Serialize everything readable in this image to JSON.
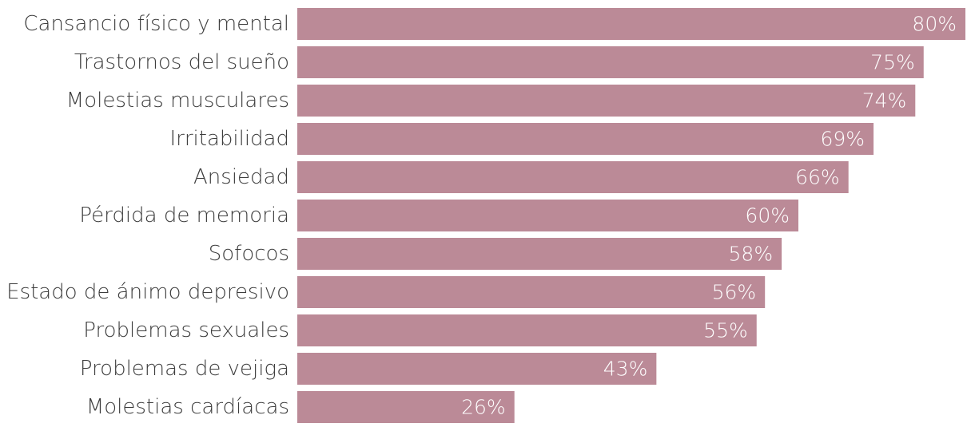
{
  "chart_data": {
    "type": "bar",
    "orientation": "horizontal",
    "categories": [
      "Cansancio físico y mental",
      "Trastornos del sueño",
      "Molestias musculares",
      "Irritabilidad",
      "Ansiedad",
      "Pérdida de memoria",
      "Sofocos",
      "Estado de ánimo depresivo",
      "Problemas sexuales",
      "Problemas de vejiga",
      "Molestias cardíacas"
    ],
    "values": [
      80,
      75,
      74,
      69,
      66,
      60,
      58,
      56,
      55,
      43,
      26
    ],
    "value_labels": [
      "80%",
      "75%",
      "74%",
      "69%",
      "66%",
      "60%",
      "58%",
      "56%",
      "55%",
      "43%",
      "26%"
    ],
    "unit": "%",
    "xlim": [
      0,
      80
    ],
    "grid": false,
    "legend": "none",
    "bar_color": "#bb8a97",
    "title": "",
    "xlabel": "",
    "ylabel": ""
  }
}
